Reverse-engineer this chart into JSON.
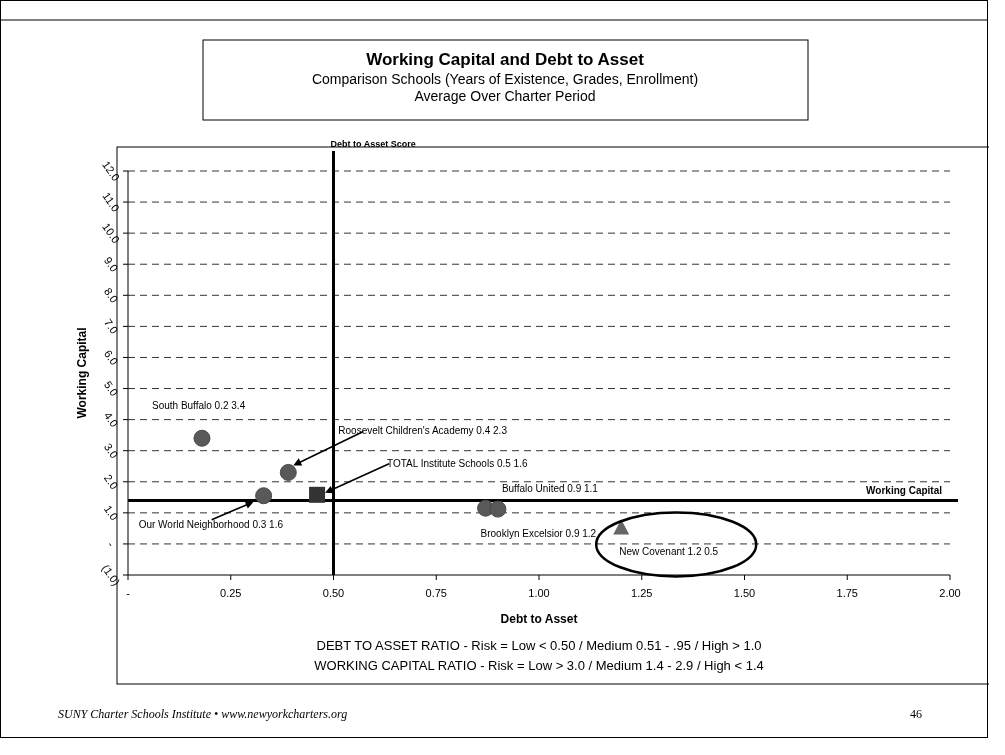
{
  "chart_data": {
    "type": "scatter",
    "title": "Working Capital and Debt to Asset",
    "subtitle": "Comparison Schools (Years of Existence, Grades, Enrollment)\nAverage Over Charter Period",
    "xlabel": "Debt to Asset",
    "ylabel": "Working Capital",
    "xlim": [
      0,
      2
    ],
    "xticks": [
      {
        "value": 0,
        "label": "-"
      },
      {
        "value": 0.25,
        "label": "0.25"
      },
      {
        "value": 0.5,
        "label": "0.50"
      },
      {
        "value": 0.75,
        "label": "0.75"
      },
      {
        "value": 1,
        "label": "1.00"
      },
      {
        "value": 1.25,
        "label": "1.25"
      },
      {
        "value": 1.5,
        "label": "1.50"
      },
      {
        "value": 1.75,
        "label": "1.75"
      },
      {
        "value": 2,
        "label": "2.00"
      }
    ],
    "ylim": [
      -1,
      12
    ],
    "yticks": [
      {
        "value": -1,
        "label": "(1.0)"
      },
      {
        "value": 0,
        "label": "-"
      },
      {
        "value": 1,
        "label": "1.0"
      },
      {
        "value": 2,
        "label": "2.0"
      },
      {
        "value": 3,
        "label": "3.0"
      },
      {
        "value": 4,
        "label": "4.0"
      },
      {
        "value": 5,
        "label": "5.0"
      },
      {
        "value": 6,
        "label": "6.0"
      },
      {
        "value": 7,
        "label": "7.0"
      },
      {
        "value": 8,
        "label": "8.0"
      },
      {
        "value": 9,
        "label": "9.0"
      },
      {
        "value": 10,
        "label": "10.0"
      },
      {
        "value": 11,
        "label": "11.0"
      },
      {
        "value": 12,
        "label": "12.0"
      }
    ],
    "grid": "y",
    "series": [
      {
        "color": "#595959",
        "marker": "circle",
        "x": [
          0.18,
          0.39,
          0.33,
          0.87,
          0.9
        ],
        "values": [
          3.4,
          2.3,
          1.55,
          1.15,
          1.12
        ]
      },
      {
        "color": "#333333",
        "marker": "square",
        "x": [
          0.46
        ],
        "values": [
          1.58
        ]
      },
      {
        "color": "#666666",
        "marker": "triangle",
        "x": [
          1.2
        ],
        "values": [
          0.5
        ]
      }
    ],
    "ref_lines": [
      {
        "axis": "x",
        "value": 0.5,
        "label": "Debt to Asset Score",
        "color": "#000000"
      },
      {
        "axis": "y",
        "value": 1.4,
        "label": "Working Capital",
        "color": "#000000"
      }
    ],
    "annotations": [
      {
        "text": "South Buffalo  0.2  3.4",
        "x": 0.18,
        "y": 3.4
      },
      "Roosevelt Children's Academy  0.4  2.3",
      {
        "text": "Our World Neighborhood  0.3  1.6",
        "x": 0.33,
        "y": 1.55
      },
      "TOTAL Institute Schools  0.5  1.6",
      {
        "text": "Brooklyn Excelsior  0.9  1.2",
        "x": 0.87,
        "y": 1.15
      },
      {
        "text": "Buffalo United  0.9  1.1",
        "x": 0.9,
        "y": 1.12
      },
      {
        "text": "New Covenant  1.2  0.5",
        "x": 1.2,
        "y": 0.5
      },
      "DEBT TO ASSET RATIO - Risk = Low < 0.50 / Medium 0.51 - .95 / High > 1.0",
      "WORKING CAPITAL RATIO - Risk = Low > 3.0 / Medium 1.4 - 2.9 / High < 1.4",
      "SUNY Charter Schools Institute • www.newyorkcharters.org",
      "46"
    ]
  }
}
